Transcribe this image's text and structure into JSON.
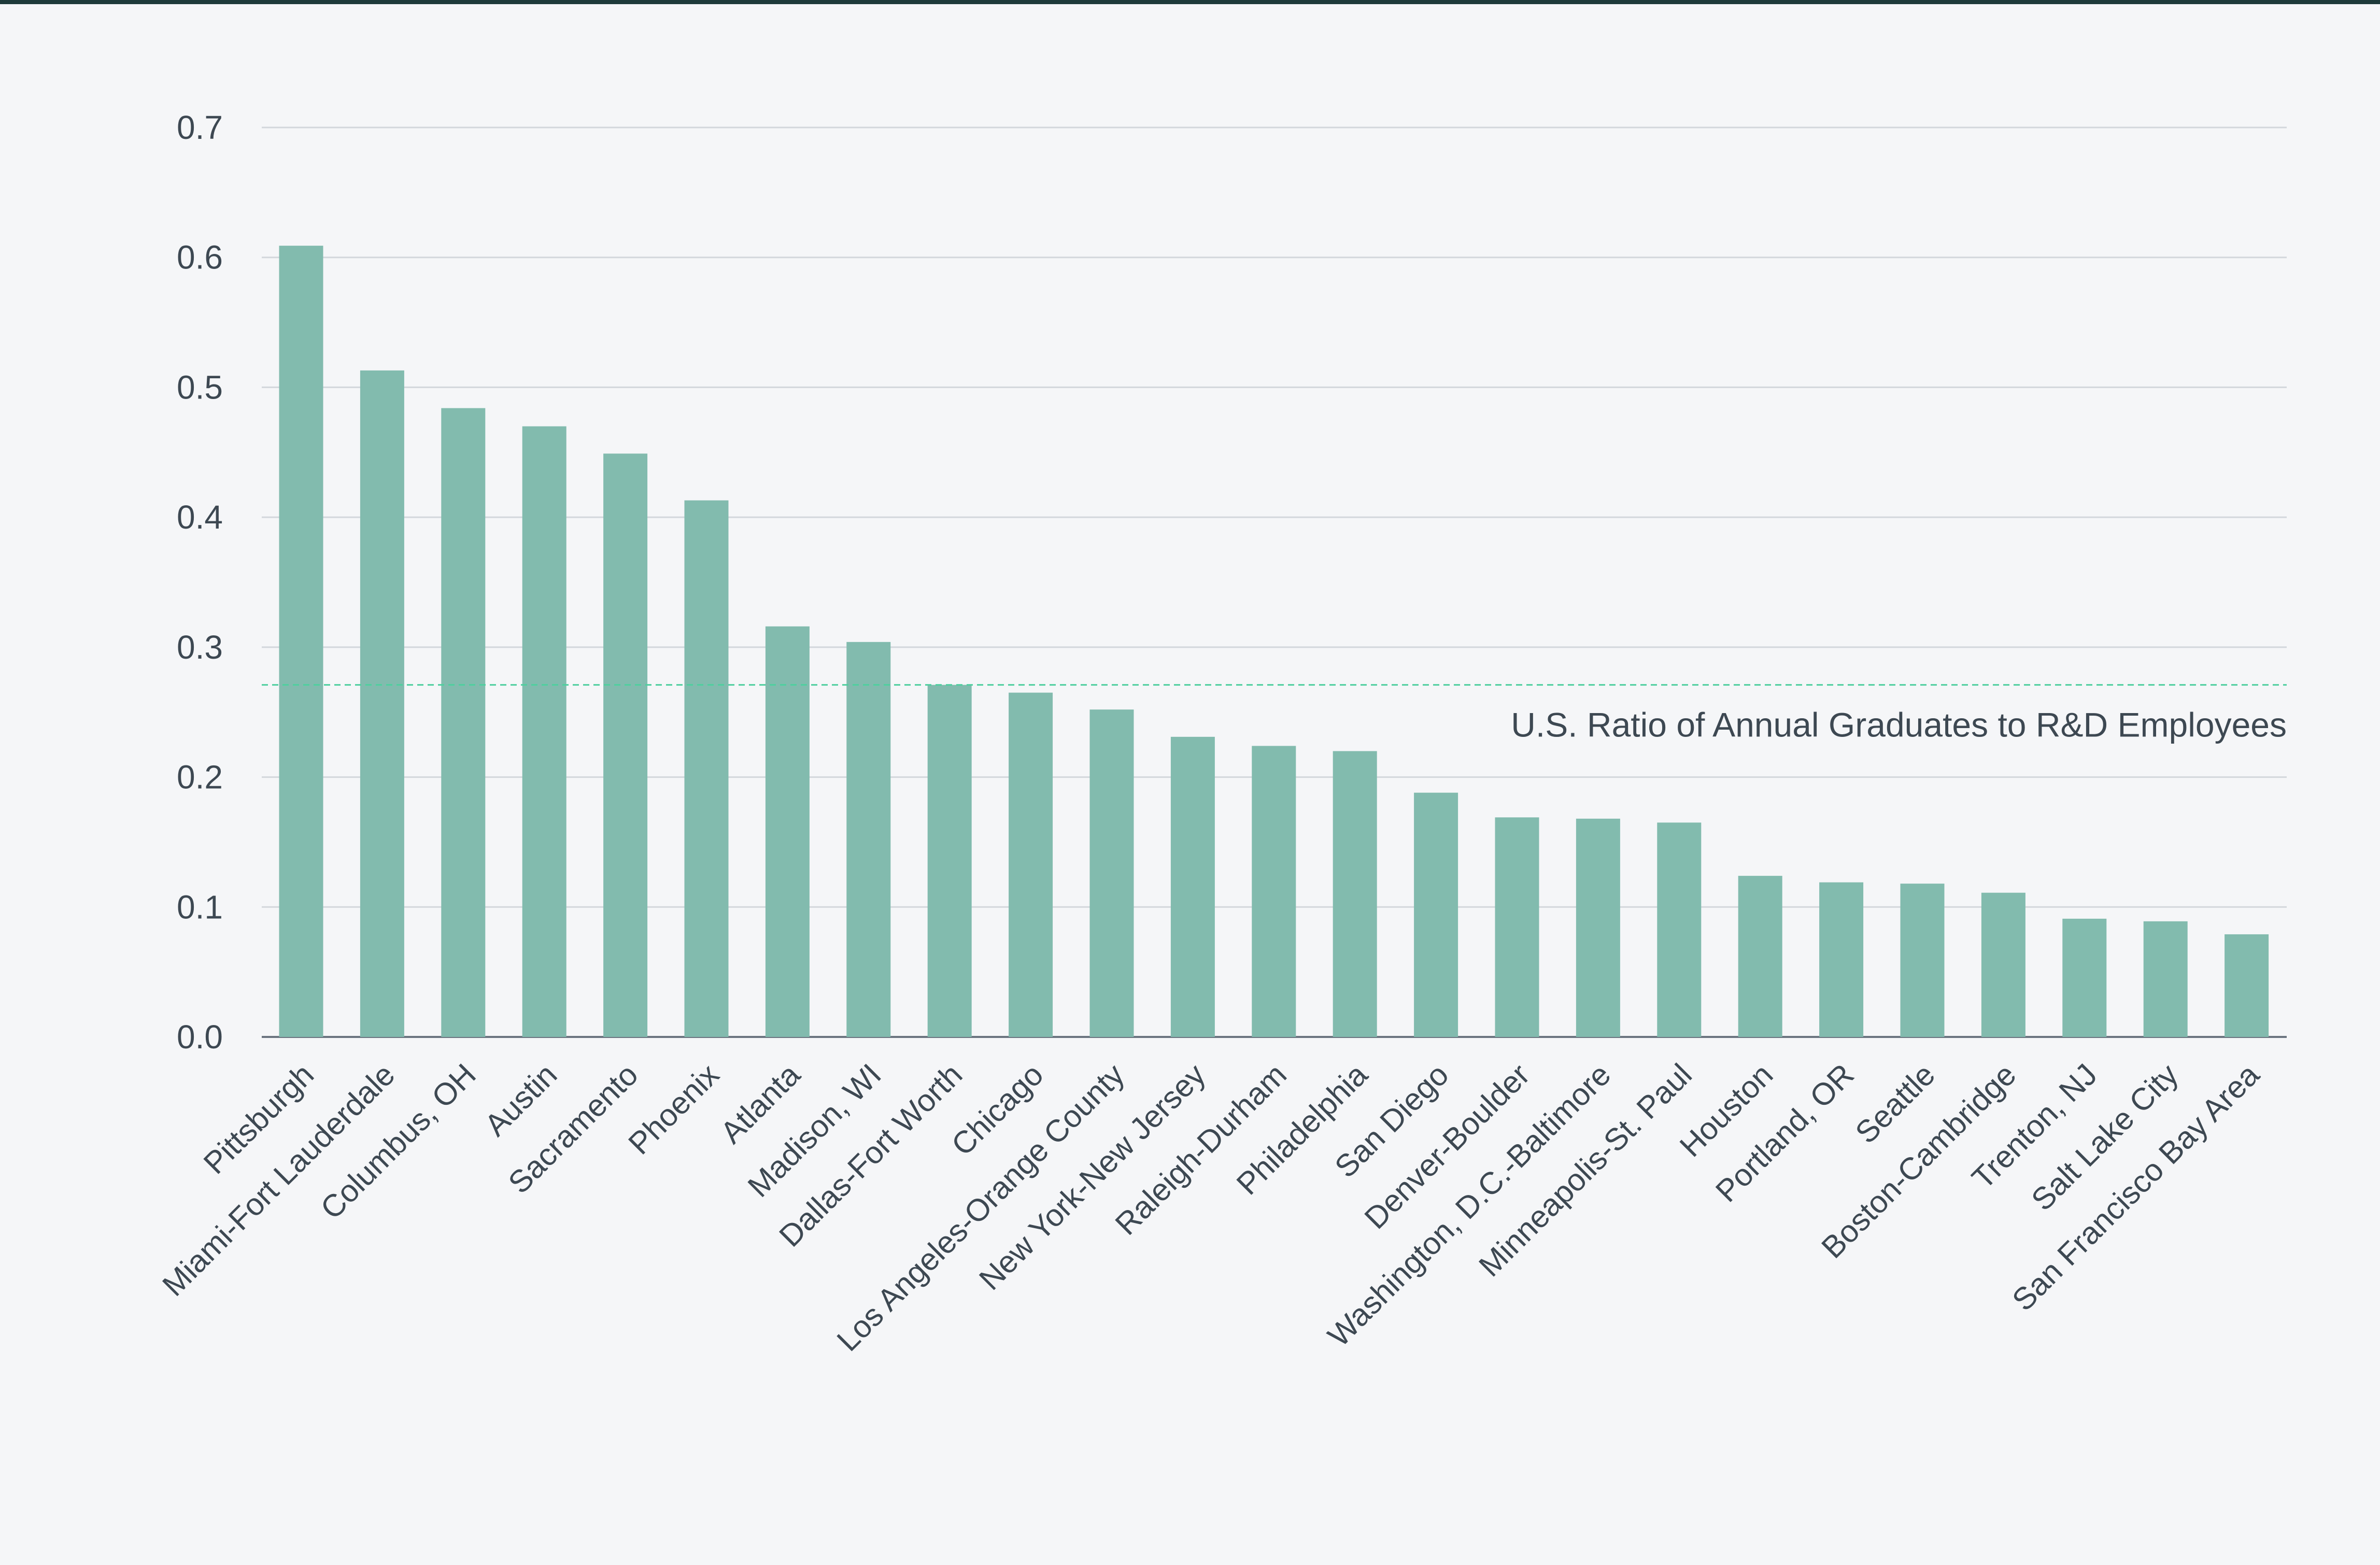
{
  "chart_data": {
    "type": "bar",
    "title": "",
    "xlabel": "",
    "ylabel": "",
    "ylim": [
      0,
      0.7
    ],
    "yticks": [
      "0.0",
      "0.1",
      "0.2",
      "0.3",
      "0.4",
      "0.5",
      "0.6",
      "0.7"
    ],
    "grid": true,
    "bar_color": "#82bbae",
    "categories": [
      "Pittsburgh",
      "Miami-Fort Lauderdale",
      "Columbus, OH",
      "Austin",
      "Sacramento",
      "Phoenix",
      "Atlanta",
      "Madison, WI",
      "Dallas-Fort Worth",
      "Chicago",
      "Los Angeles-Orange County",
      "New York-New Jersey",
      "Raleigh-Durham",
      "Philadelphia",
      "San Diego",
      "Denver-Boulder",
      "Washington, D.C.-Baltimore",
      "Minneapolis-St. Paul",
      "Houston",
      "Portland, OR",
      "Seattle",
      "Boston-Cambridge",
      "Trenton, NJ",
      "Salt Lake City",
      "San Francisco Bay Area"
    ],
    "values": [
      0.609,
      0.513,
      0.484,
      0.47,
      0.449,
      0.413,
      0.316,
      0.304,
      0.271,
      0.265,
      0.252,
      0.231,
      0.224,
      0.22,
      0.188,
      0.169,
      0.168,
      0.165,
      0.124,
      0.119,
      0.118,
      0.111,
      0.091,
      0.089,
      0.079
    ],
    "reference_line": {
      "value": 0.271,
      "label": "U.S. Ratio of Annual Graduates to R&D Employees",
      "color": "#4fcf9f",
      "style": "dashed"
    }
  }
}
